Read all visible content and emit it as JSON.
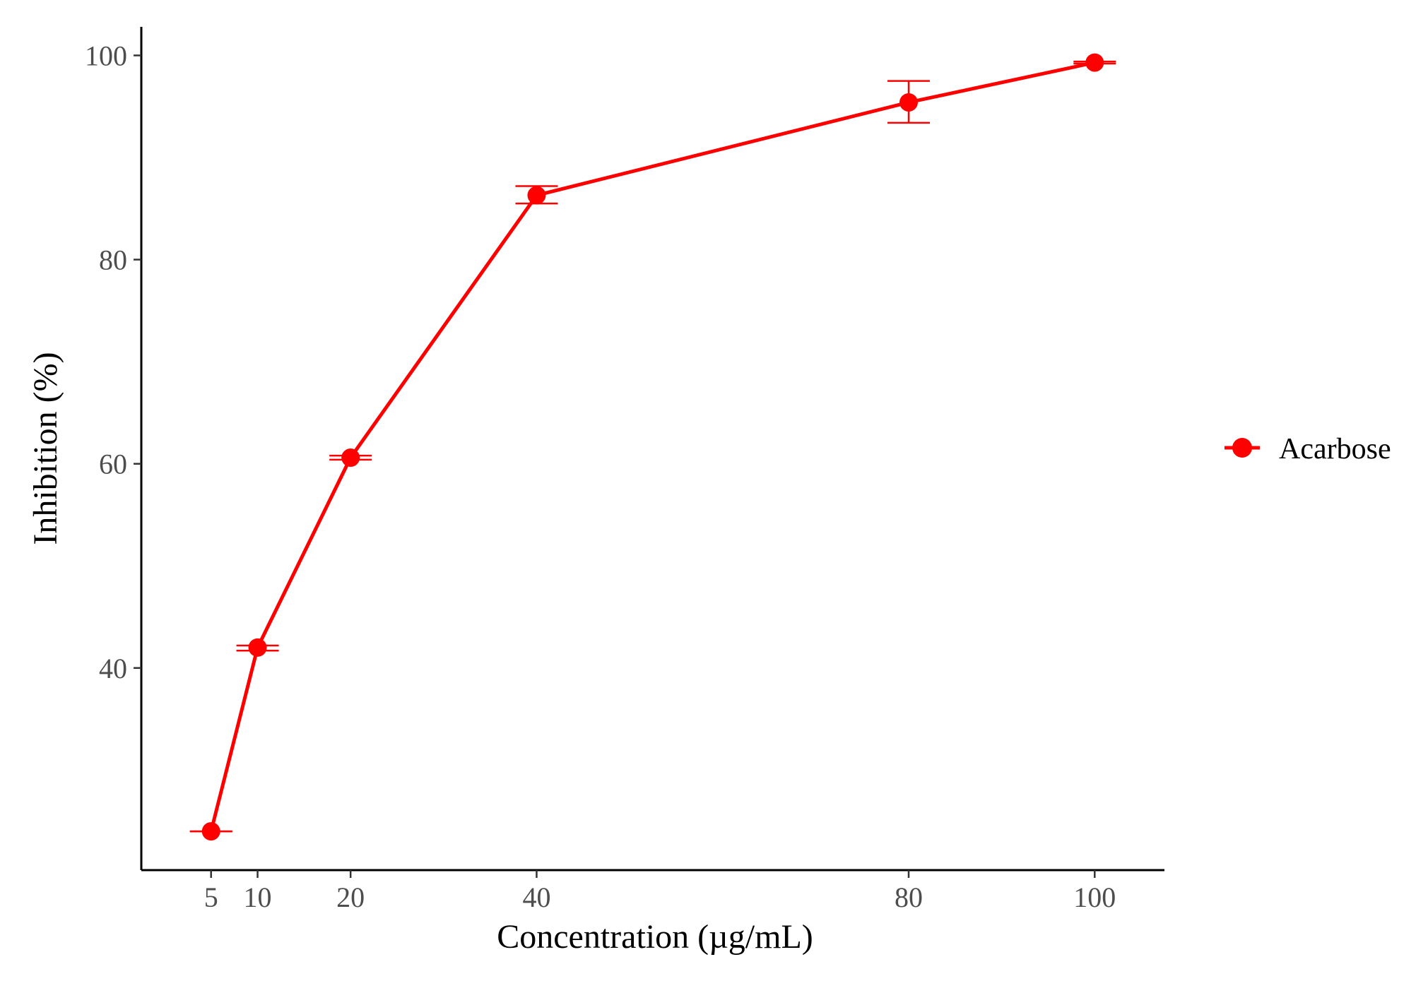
{
  "chart_data": {
    "type": "line",
    "title": "",
    "xlabel": "Concentration (µg/mL)",
    "ylabel": "Inhibition (%)",
    "x_ticks": [
      5,
      10,
      20,
      40,
      80,
      100
    ],
    "y_ticks": [
      40,
      60,
      80,
      100
    ],
    "xlim": [
      -2.5,
      107.5
    ],
    "ylim": [
      20.2,
      102.8
    ],
    "grid": false,
    "legend_position": "right",
    "series": [
      {
        "name": "Acarbose",
        "color": "#ff0000",
        "marker": "circle",
        "x": [
          5,
          10,
          20,
          40,
          80,
          100
        ],
        "y": [
          24.0,
          42.0,
          60.6,
          86.3,
          95.4,
          99.3
        ],
        "error_low": [
          24.0,
          41.7,
          60.4,
          85.5,
          93.4,
          99.2
        ],
        "error_high": [
          24.0,
          42.2,
          60.8,
          87.2,
          97.5,
          99.4
        ]
      }
    ]
  }
}
